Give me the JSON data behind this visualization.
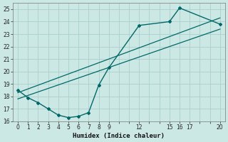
{
  "xlabel": "Humidex (Indice chaleur)",
  "bg_color": "#cce8e5",
  "grid_color": "#aacfcc",
  "line_color": "#006868",
  "xlim": [
    -0.5,
    20.5
  ],
  "ylim": [
    16,
    25.5
  ],
  "xtick_positions": [
    0,
    1,
    2,
    3,
    4,
    5,
    6,
    7,
    8,
    9,
    10,
    11,
    12,
    13,
    14,
    15,
    16,
    17,
    18,
    19,
    20
  ],
  "xtick_labels_show": [
    0,
    1,
    2,
    3,
    4,
    5,
    6,
    7,
    8,
    9,
    12,
    15,
    16,
    17,
    20
  ],
  "yticks": [
    16,
    17,
    18,
    19,
    20,
    21,
    22,
    23,
    24,
    25
  ],
  "line1_x": [
    0,
    1,
    2,
    3,
    4,
    5,
    6,
    7,
    8,
    9,
    12,
    15,
    16,
    20
  ],
  "line1_y": [
    18.5,
    17.9,
    17.5,
    17.0,
    16.5,
    16.3,
    16.4,
    16.7,
    18.9,
    20.3,
    23.7,
    24.0,
    25.1,
    23.8
  ],
  "line2_x": [
    0,
    20
  ],
  "line2_y": [
    17.8,
    23.4
  ],
  "line3_x": [
    0,
    20
  ],
  "line3_y": [
    18.3,
    24.3
  ]
}
